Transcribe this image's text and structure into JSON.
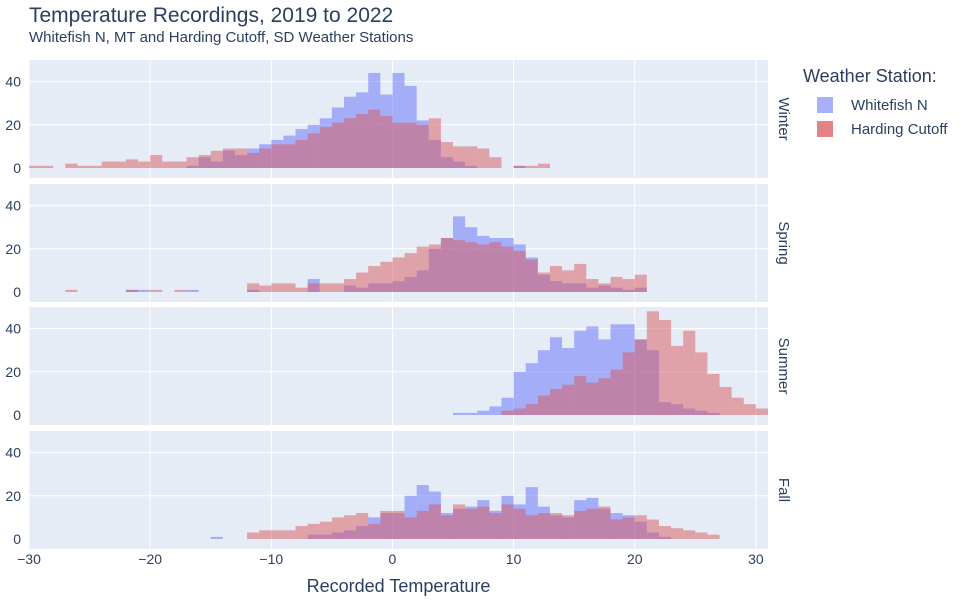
{
  "chart_data": {
    "type": "bar",
    "title": "Temperature Recordings, 2019 to 2022",
    "subtitle": "Whitefish N, MT and Harding Cutoff, SD Weather Stations",
    "xlabel": "Recorded Temperature",
    "xlim": [
      -30,
      31
    ],
    "ylim": [
      0,
      50
    ],
    "bin_width": 1,
    "bins_start": -30,
    "x_ticks": [
      -30,
      -20,
      -10,
      0,
      10,
      20,
      30
    ],
    "x_tick_labels": [
      "−30",
      "−20",
      "−10",
      "0",
      "10",
      "20",
      "30"
    ],
    "y_ticks": [
      0,
      20,
      40
    ],
    "y_tick_labels": [
      "0",
      "20",
      "40"
    ],
    "barmode": "overlay",
    "grid": true,
    "legend": {
      "title": "Weather Station:",
      "position": "right",
      "entries": [
        "Whitefish N",
        "Harding Cutoff"
      ]
    },
    "colors": {
      "Whitefish N": "#636efa",
      "Harding Cutoff": "#d9585c",
      "plot_bg": "#e5ecf6",
      "text": "#2a3f5f"
    },
    "facets": [
      {
        "label": "Winter",
        "series": [
          {
            "name": "Whitefish N",
            "values": [
              0,
              0,
              0,
              0,
              0,
              0,
              0,
              0,
              0,
              0,
              0,
              0,
              0,
              1,
              5,
              3,
              8,
              6,
              9,
              11,
              13,
              15,
              18,
              20,
              23,
              28,
              33,
              35,
              44,
              34,
              44,
              38,
              22,
              13,
              5,
              3,
              1,
              0,
              0,
              0,
              1,
              0,
              0,
              0,
              0,
              0,
              0,
              0,
              0,
              0,
              0,
              0,
              0,
              0,
              0,
              0,
              0,
              0,
              0,
              0,
              0
            ]
          },
          {
            "name": "Harding Cutoff",
            "values": [
              1,
              1,
              0,
              2,
              1,
              1,
              3,
              3,
              4,
              3,
              6,
              3,
              3,
              5,
              6,
              8,
              9,
              9,
              7,
              9,
              11,
              11,
              13,
              16,
              19,
              21,
              23,
              25,
              27,
              24,
              21,
              21,
              20,
              23,
              12,
              10,
              10,
              9,
              5,
              0,
              1,
              1,
              2,
              0,
              0,
              0,
              0,
              0,
              0,
              0,
              0,
              0,
              0,
              0,
              0,
              0,
              0,
              0,
              0,
              0,
              0
            ]
          }
        ]
      },
      {
        "label": "Spring",
        "series": [
          {
            "name": "Whitefish N",
            "values": [
              0,
              0,
              0,
              0,
              0,
              0,
              0,
              0,
              1,
              1,
              0,
              0,
              0,
              1,
              0,
              0,
              0,
              0,
              1,
              0,
              0,
              0,
              0,
              6,
              0,
              0,
              3,
              2,
              4,
              4,
              5,
              7,
              10,
              20,
              25,
              35,
              30,
              26,
              25,
              25,
              22,
              16,
              8,
              5,
              4,
              4,
              2,
              3,
              2,
              1,
              2,
              0,
              0,
              0,
              0,
              0,
              0,
              0,
              0,
              0,
              0
            ]
          },
          {
            "name": "Harding Cutoff",
            "values": [
              0,
              0,
              0,
              1,
              0,
              0,
              0,
              0,
              1,
              0,
              1,
              0,
              1,
              0,
              0,
              0,
              0,
              0,
              4,
              3,
              4,
              4,
              2,
              4,
              4,
              4,
              6,
              9,
              12,
              14,
              16,
              18,
              21,
              22,
              25,
              24,
              23,
              22,
              23,
              21,
              19,
              15,
              9,
              12,
              10,
              13,
              6,
              4,
              7,
              6,
              8,
              0,
              0,
              0,
              0,
              0,
              0,
              0,
              0,
              0,
              0
            ]
          }
        ]
      },
      {
        "label": "Summer",
        "series": [
          {
            "name": "Whitefish N",
            "values": [
              0,
              0,
              0,
              0,
              0,
              0,
              0,
              0,
              0,
              0,
              0,
              0,
              0,
              0,
              0,
              0,
              0,
              0,
              0,
              0,
              0,
              0,
              0,
              0,
              0,
              0,
              0,
              0,
              0,
              0,
              0,
              0,
              0,
              0,
              0,
              1,
              1,
              2,
              4,
              8,
              20,
              24,
              30,
              36,
              31,
              39,
              41,
              35,
              42,
              42,
              35,
              30,
              6,
              5,
              3,
              2,
              1,
              0,
              0,
              0,
              0
            ]
          },
          {
            "name": "Harding Cutoff",
            "values": [
              0,
              0,
              0,
              0,
              0,
              0,
              0,
              0,
              0,
              0,
              0,
              0,
              0,
              0,
              0,
              0,
              0,
              0,
              0,
              0,
              0,
              0,
              0,
              0,
              0,
              0,
              0,
              0,
              0,
              0,
              0,
              0,
              0,
              0,
              0,
              0,
              0,
              0,
              0,
              2,
              3,
              5,
              9,
              12,
              14,
              18,
              15,
              17,
              21,
              29,
              35,
              48,
              44,
              32,
              39,
              29,
              19,
              13,
              8,
              5,
              3
            ]
          }
        ]
      },
      {
        "label": "Fall",
        "series": [
          {
            "name": "Whitefish N",
            "values": [
              0,
              0,
              0,
              0,
              0,
              0,
              0,
              0,
              0,
              0,
              0,
              0,
              0,
              0,
              0,
              1,
              0,
              0,
              0,
              0,
              0,
              0,
              0,
              2,
              2,
              3,
              4,
              6,
              10,
              12,
              12,
              20,
              25,
              22,
              12,
              14,
              15,
              18,
              13,
              20,
              16,
              24,
              15,
              11,
              10,
              18,
              19,
              14,
              12,
              11,
              8,
              3,
              1,
              0,
              0,
              0,
              0,
              0,
              0,
              0,
              0
            ]
          },
          {
            "name": "Harding Cutoff",
            "values": [
              0,
              0,
              0,
              0,
              0,
              0,
              0,
              0,
              0,
              0,
              0,
              0,
              0,
              0,
              0,
              0,
              0,
              0,
              3,
              4,
              4,
              4,
              6,
              7,
              8,
              10,
              11,
              12,
              7,
              13,
              13,
              10,
              13,
              16,
              11,
              16,
              14,
              15,
              12,
              16,
              14,
              11,
              12,
              12,
              11,
              13,
              14,
              15,
              9,
              10,
              11,
              9,
              6,
              5,
              4,
              3,
              2,
              0,
              0,
              0,
              0
            ]
          }
        ]
      }
    ]
  }
}
